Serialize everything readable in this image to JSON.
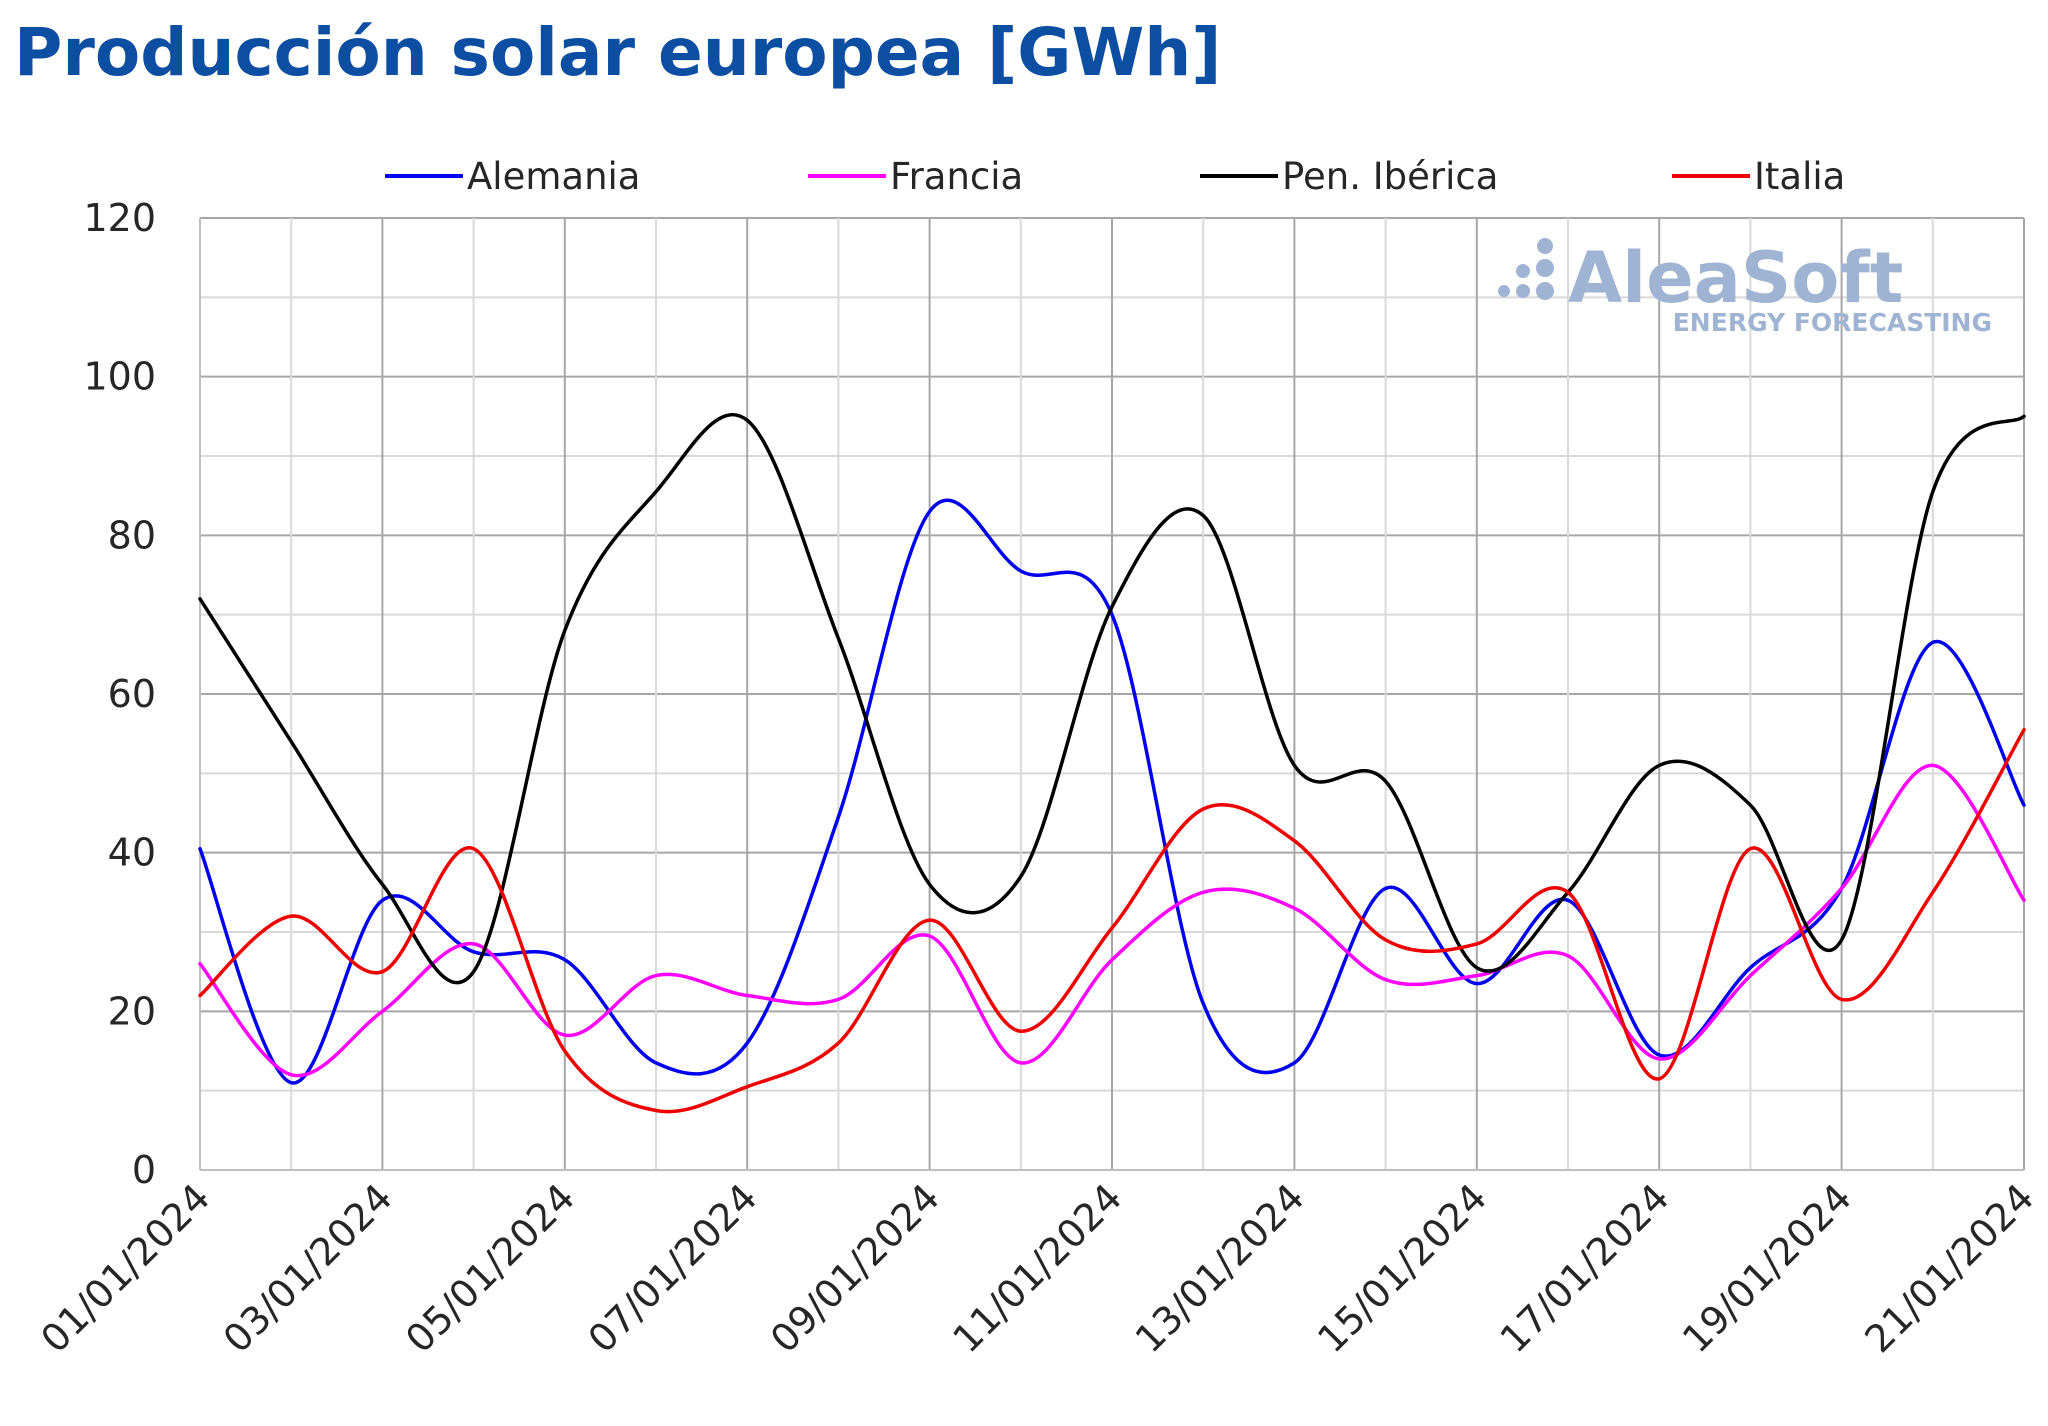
{
  "chart_data": {
    "type": "line",
    "title": "Producción solar europea [GWh]",
    "xlabel": "",
    "ylabel": "",
    "ylim": [
      0,
      120
    ],
    "yticks": [
      0,
      20,
      40,
      60,
      80,
      100,
      120
    ],
    "x": [
      "01/01/2024",
      "02/01/2024",
      "03/01/2024",
      "04/01/2024",
      "05/01/2024",
      "06/01/2024",
      "07/01/2024",
      "08/01/2024",
      "09/01/2024",
      "10/01/2024",
      "11/01/2024",
      "12/01/2024",
      "13/01/2024",
      "14/01/2024",
      "15/01/2024",
      "16/01/2024",
      "17/01/2024",
      "18/01/2024",
      "19/01/2024",
      "20/01/2024",
      "21/01/2024"
    ],
    "x_tick_labels": [
      "01/01/2024",
      "03/01/2024",
      "05/01/2024",
      "07/01/2024",
      "09/01/2024",
      "11/01/2024",
      "13/01/2024",
      "15/01/2024",
      "17/01/2024",
      "19/01/2024",
      "21/01/2024"
    ],
    "grid": true,
    "legend_position": "top",
    "series": [
      {
        "name": "Alemania",
        "color": "#0000ee",
        "values": [
          40.5,
          11,
          34,
          27.5,
          26.5,
          13.5,
          16,
          44.5,
          83,
          75.5,
          70,
          21,
          13.5,
          35.5,
          23.5,
          34,
          14.5,
          25.5,
          35.5,
          66.5,
          46
        ]
      },
      {
        "name": "Francia",
        "color": "#ff00ff",
        "values": [
          26,
          12,
          20,
          28.5,
          17,
          24.5,
          22,
          21.5,
          29.5,
          13.5,
          26.5,
          35,
          33,
          24,
          24.5,
          27,
          14,
          24.5,
          35.5,
          51,
          34
        ]
      },
      {
        "name": "Pen. Ibérica",
        "color": "#000000",
        "values": [
          72,
          54,
          36,
          25,
          68,
          85.5,
          94.5,
          67,
          36,
          37,
          71,
          82.5,
          51,
          49,
          25.5,
          35,
          51,
          46,
          29,
          85.5,
          95
        ]
      },
      {
        "name": "Italia",
        "color": "#ee0000",
        "values": [
          22,
          32,
          25,
          40.5,
          15,
          7.5,
          10.5,
          16,
          31.5,
          17.5,
          30.5,
          45.5,
          41.5,
          29,
          28.5,
          35,
          11.5,
          40.5,
          21.5,
          35,
          55.5
        ]
      }
    ]
  },
  "watermark": {
    "brand": "AleaSoft",
    "tagline": "ENERGY FORECASTING",
    "color": "#9fb3d3"
  }
}
